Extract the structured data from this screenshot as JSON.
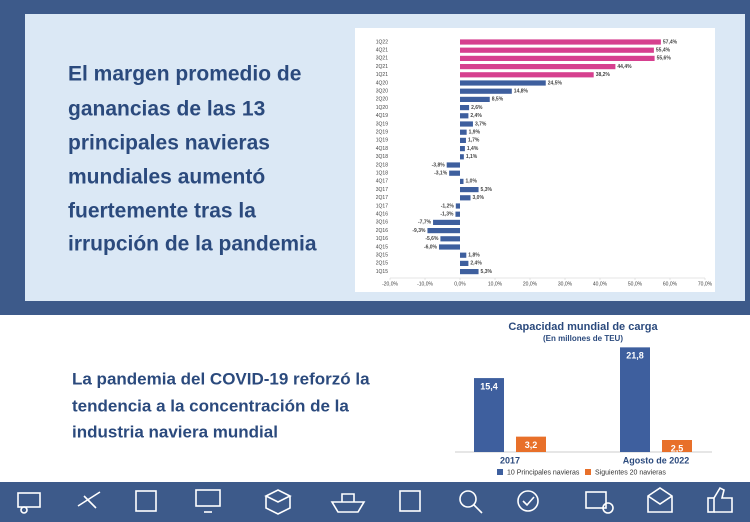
{
  "headline": [
    "El margen promedio de",
    "ganancias de las 13",
    "principales navieras",
    "mundiales aumentó",
    "fuertemente tras la",
    "irrupción de la pandemia"
  ],
  "subheadline": [
    "La pandemia del COVID-19 reforzó la",
    "tendencia a la concentración de la",
    "industria naviera mundial"
  ],
  "chart_data": [
    {
      "type": "bar",
      "orientation": "horizontal",
      "categories": [
        "1Q22",
        "4Q21",
        "3Q21",
        "2Q21",
        "1Q21",
        "4Q20",
        "3Q20",
        "2Q20",
        "1Q20",
        "4Q19",
        "3Q19",
        "2Q19",
        "1Q19",
        "4Q18",
        "3Q18",
        "2Q18",
        "1Q18",
        "4Q17",
        "3Q17",
        "2Q17",
        "1Q17",
        "4Q16",
        "3Q16",
        "2Q16",
        "1Q16",
        "4Q15",
        "3Q15",
        "2Q15",
        "1Q15"
      ],
      "values": [
        57.4,
        55.4,
        55.6,
        44.4,
        38.2,
        24.5,
        14.8,
        8.5,
        2.6,
        2.4,
        3.7,
        1.9,
        1.7,
        1.4,
        1.1,
        -3.8,
        -3.1,
        1.0,
        5.3,
        3.0,
        -1.2,
        -1.3,
        -7.7,
        -9.3,
        -5.6,
        -6.0,
        1.8,
        2.4,
        5.3
      ],
      "value_labels": [
        "57,4%",
        "55,4%",
        "55,6%",
        "44,4%",
        "38,2%",
        "24,5%",
        "14,8%",
        "8,5%",
        "2,6%",
        "2,4%",
        "3,7%",
        "1,9%",
        "1,7%",
        "1,4%",
        "1,1%",
        "-3,8%",
        "-3,1%",
        "1,0%",
        "5,3%",
        "3,0%",
        "-1,2%",
        "-1,3%",
        "-7,7%",
        "-9,3%",
        "-5,6%",
        "-6,0%",
        "1,8%",
        "2,4%",
        "5,3%"
      ],
      "colors": [
        "#d6408f",
        "#d6408f",
        "#d6408f",
        "#d6408f",
        "#d6408f",
        "#3e5f9e",
        "#3e5f9e",
        "#3e5f9e",
        "#3e5f9e",
        "#3e5f9e",
        "#3e5f9e",
        "#3e5f9e",
        "#3e5f9e",
        "#3e5f9e",
        "#3e5f9e",
        "#3e5f9e",
        "#3e5f9e",
        "#3e5f9e",
        "#3e5f9e",
        "#3e5f9e",
        "#3e5f9e",
        "#3e5f9e",
        "#3e5f9e",
        "#3e5f9e",
        "#3e5f9e",
        "#3e5f9e",
        "#3e5f9e",
        "#3e5f9e",
        "#3e5f9e"
      ],
      "xlim": [
        -20,
        70
      ],
      "xticks": [
        {
          "value": -20,
          "label": "-20,0%"
        },
        {
          "value": -10,
          "label": "-10,0%"
        },
        {
          "value": 0,
          "label": "0,0%"
        },
        {
          "value": 10,
          "label": "10,0%"
        },
        {
          "value": 20,
          "label": "20,0%"
        },
        {
          "value": 30,
          "label": "30,0%"
        },
        {
          "value": 40,
          "label": "40,0%"
        },
        {
          "value": 50,
          "label": "50,0%"
        },
        {
          "value": 60,
          "label": "60,0%"
        },
        {
          "value": 70,
          "label": "70,0%"
        }
      ]
    },
    {
      "type": "bar",
      "orientation": "vertical",
      "title": "Capacidad mundial de carga",
      "subtitle": "(En millones de TEU)",
      "categories": [
        "2017",
        "Agosto de 2022"
      ],
      "series": [
        {
          "name": "10 Principales navieras",
          "color": "#3e5f9e",
          "values": [
            15.4,
            21.8
          ],
          "value_labels": [
            "15,4",
            "21,8"
          ]
        },
        {
          "name": "Siguientes 20 navieras",
          "color": "#e8702a",
          "values": [
            3.2,
            2.5
          ],
          "value_labels": [
            "3,2",
            "2,5"
          ]
        }
      ]
    }
  ]
}
